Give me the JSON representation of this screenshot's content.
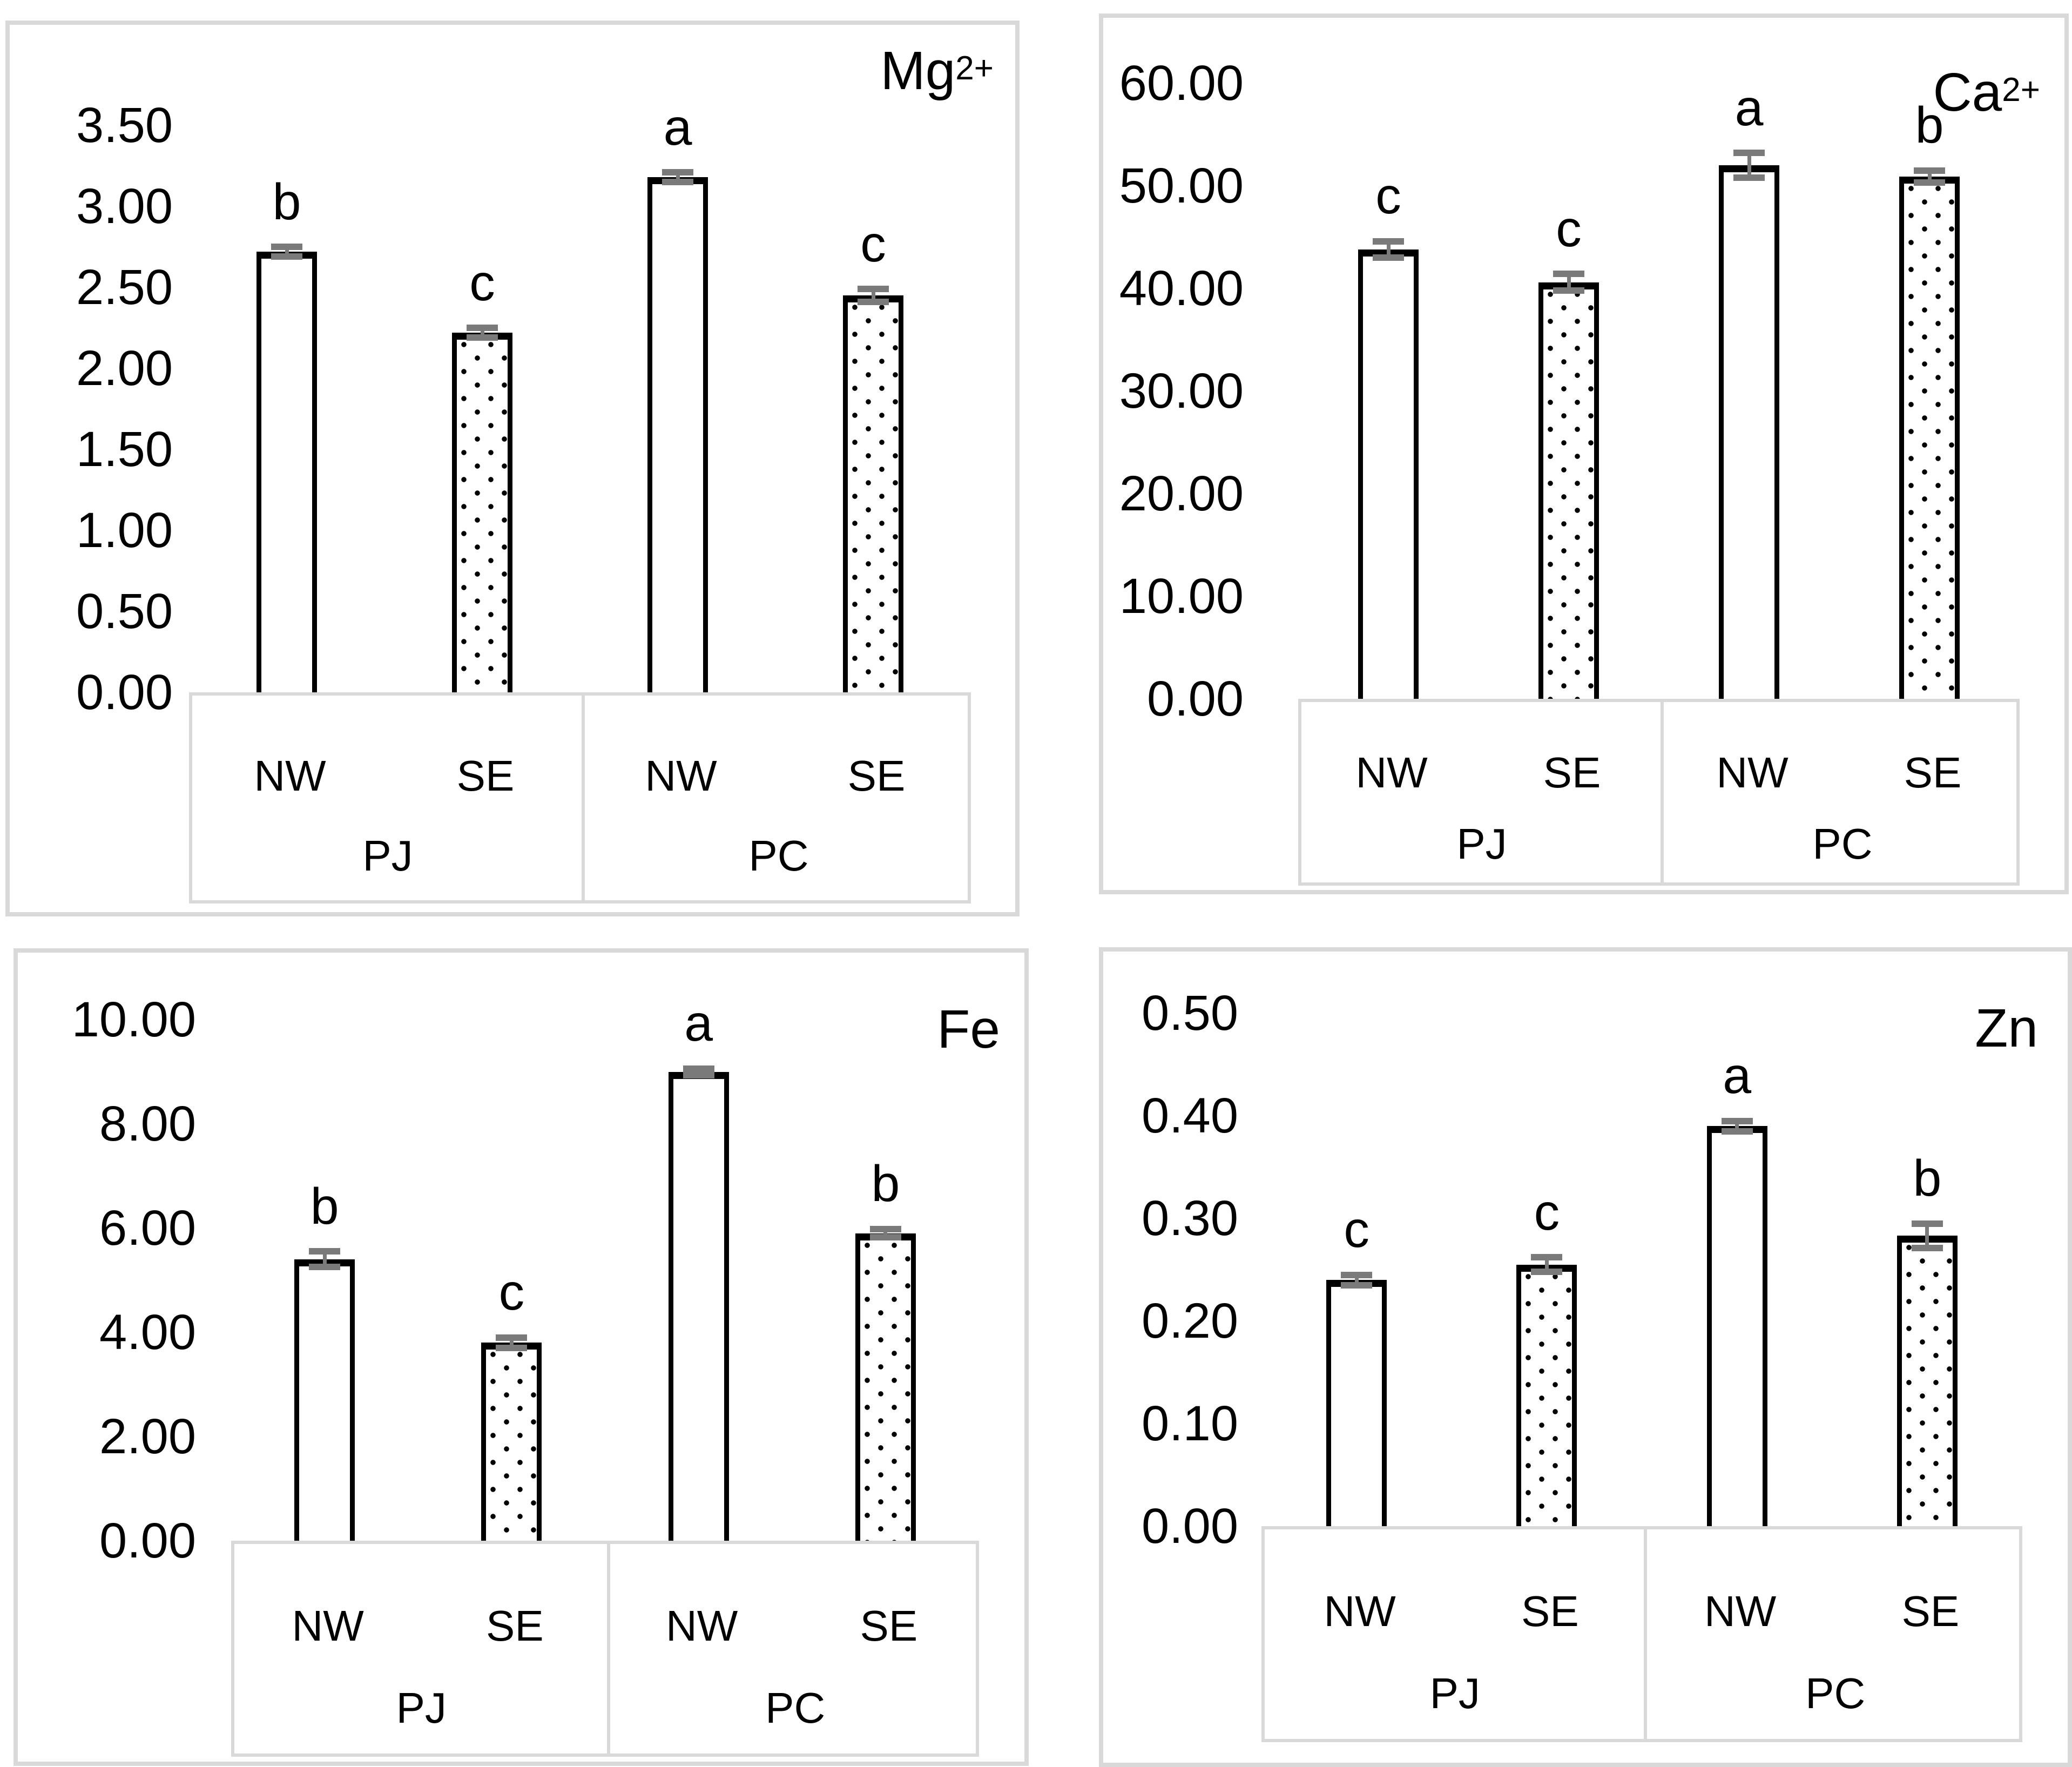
{
  "figure": {
    "description": "Four-panel bar chart figure comparing element concentrations (Mg2+, Ca2+, Fe, Zn) at NW and SE aspects for PJ and PC groups, with significance letters and error bars",
    "panel_count": 4
  },
  "colors": {
    "bar_fill": "#ffffff",
    "bar_border": "#000000",
    "error_bar": "#7a7a7a",
    "panel_border": "#d9d9d9",
    "category_box_border": "#d9d9d9",
    "text": "#000000",
    "background": "#ffffff"
  },
  "chart_data": [
    {
      "id": "mg",
      "type": "bar",
      "title_base": "Mg",
      "title_sup": "2+",
      "ymax": 3.5,
      "step": 0.5,
      "ylim": [
        0,
        3.5
      ],
      "grid": "off",
      "legend": "none",
      "yticks": [
        "3.50",
        "3.00",
        "2.50",
        "2.00",
        "1.50",
        "1.00",
        "0.50",
        "0.00"
      ],
      "groups": [
        "PJ",
        "PC"
      ],
      "aspects": [
        "NW",
        "SE",
        "NW",
        "SE"
      ],
      "bars": [
        {
          "group": "PJ",
          "aspect": "NW",
          "value": 2.72,
          "error": 0.03,
          "letter": "b",
          "pattern": "plain"
        },
        {
          "group": "PJ",
          "aspect": "SE",
          "value": 2.22,
          "error": 0.03,
          "letter": "c",
          "pattern": "dotted"
        },
        {
          "group": "PC",
          "aspect": "NW",
          "value": 3.18,
          "error": 0.03,
          "letter": "a",
          "pattern": "plain"
        },
        {
          "group": "PC",
          "aspect": "SE",
          "value": 2.45,
          "error": 0.04,
          "letter": "c",
          "pattern": "dotted"
        }
      ]
    },
    {
      "id": "ca",
      "type": "bar",
      "title_base": "Ca",
      "title_sup": "2+",
      "ymax": 60,
      "step": 10,
      "ylim": [
        0,
        60
      ],
      "grid": "off",
      "legend": "none",
      "yticks": [
        "60.00",
        "50.00",
        "40.00",
        "30.00",
        "20.00",
        "10.00",
        "0.00"
      ],
      "groups": [
        "PJ",
        "PC"
      ],
      "aspects": [
        "NW",
        "SE",
        "NW",
        "SE"
      ],
      "bars": [
        {
          "group": "PJ",
          "aspect": "NW",
          "value": 43.8,
          "error": 0.8,
          "letter": "c",
          "pattern": "plain"
        },
        {
          "group": "PJ",
          "aspect": "SE",
          "value": 40.6,
          "error": 0.8,
          "letter": "c",
          "pattern": "dotted"
        },
        {
          "group": "PC",
          "aspect": "NW",
          "value": 52.0,
          "error": 1.2,
          "letter": "a",
          "pattern": "plain"
        },
        {
          "group": "PC",
          "aspect": "SE",
          "value": 50.9,
          "error": 0.6,
          "letter": "b",
          "pattern": "dotted"
        }
      ]
    },
    {
      "id": "fe",
      "type": "bar",
      "title_base": "Fe",
      "title_sup": "",
      "ymax": 10,
      "step": 2,
      "ylim": [
        0,
        10
      ],
      "grid": "off",
      "legend": "none",
      "yticks": [
        "10.00",
        "8.00",
        "6.00",
        "4.00",
        "2.00",
        "0.00"
      ],
      "groups": [
        "PJ",
        "PC"
      ],
      "aspects": [
        "NW",
        "SE",
        "NW",
        "SE"
      ],
      "bars": [
        {
          "group": "PJ",
          "aspect": "NW",
          "value": 5.4,
          "error": 0.15,
          "letter": "b",
          "pattern": "plain"
        },
        {
          "group": "PJ",
          "aspect": "SE",
          "value": 3.8,
          "error": 0.1,
          "letter": "c",
          "pattern": "dotted"
        },
        {
          "group": "PC",
          "aspect": "NW",
          "value": 9.0,
          "error": 0.06,
          "letter": "a",
          "pattern": "plain"
        },
        {
          "group": "PC",
          "aspect": "SE",
          "value": 5.9,
          "error": 0.08,
          "letter": "b",
          "pattern": "dotted"
        }
      ]
    },
    {
      "id": "zn",
      "type": "bar",
      "title_base": "Zn",
      "title_sup": "",
      "ymax": 0.5,
      "step": 0.1,
      "ylim": [
        0,
        0.5
      ],
      "grid": "off",
      "legend": "none",
      "yticks": [
        "0.50",
        "0.40",
        "0.30",
        "0.20",
        "0.10",
        "0.00"
      ],
      "groups": [
        "PJ",
        "PC"
      ],
      "aspects": [
        "NW",
        "SE",
        "NW",
        "SE"
      ],
      "bars": [
        {
          "group": "PJ",
          "aspect": "NW",
          "value": 0.24,
          "error": 0.005,
          "letter": "c",
          "pattern": "plain"
        },
        {
          "group": "PJ",
          "aspect": "SE",
          "value": 0.255,
          "error": 0.007,
          "letter": "c",
          "pattern": "dotted"
        },
        {
          "group": "PC",
          "aspect": "NW",
          "value": 0.39,
          "error": 0.005,
          "letter": "a",
          "pattern": "plain"
        },
        {
          "group": "PC",
          "aspect": "SE",
          "value": 0.283,
          "error": 0.012,
          "letter": "b",
          "pattern": "dotted"
        }
      ]
    }
  ]
}
